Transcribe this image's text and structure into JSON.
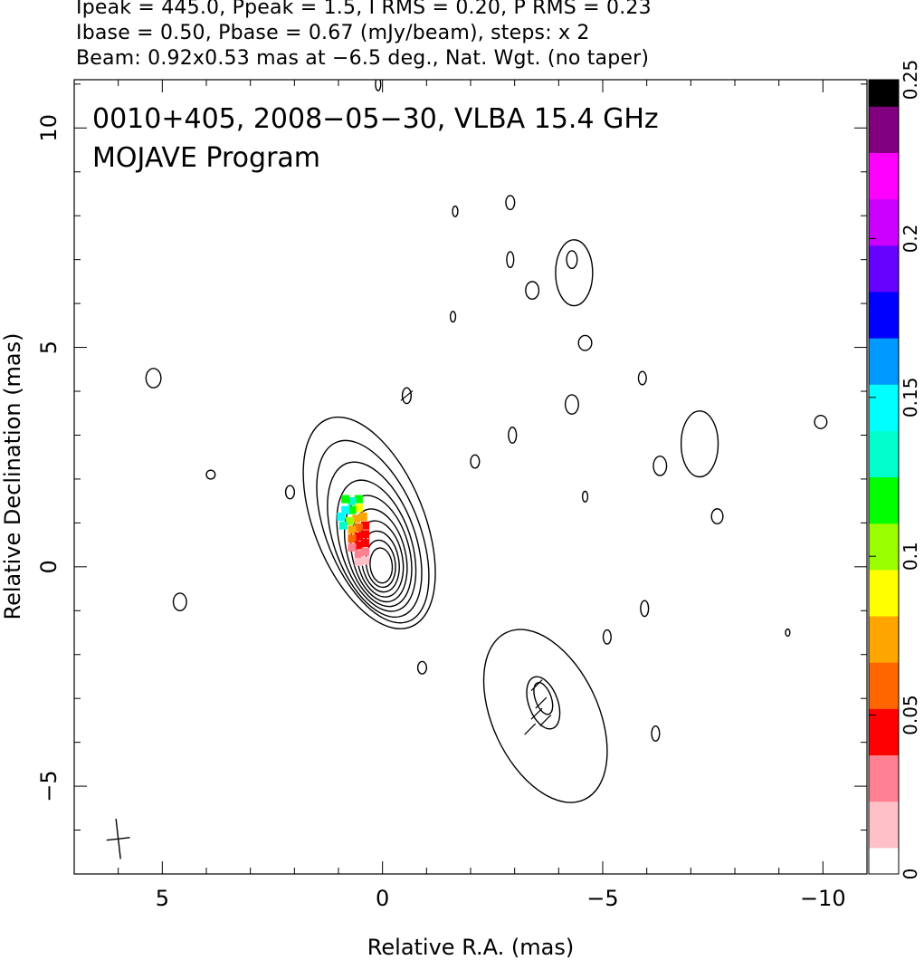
{
  "header": {
    "line1": "Ipeak = 445.0, Ppeak = 1.5, I RMS = 0.20, P RMS = 0.23",
    "line2": "Ibase = 0.50, Pbase = 0.67 (mJy/beam), steps: x 2",
    "line3": "Beam: 0.92x0.53 mas at −6.5 deg., Nat. Wgt. (no taper)"
  },
  "chart_data": {
    "type": "heatmap",
    "title": "0010+405, 2008−05−30, VLBA 15.4 GHz",
    "subtitle": "MOJAVE Program",
    "xlabel": "Relative R.A. (mas)",
    "ylabel": "Relative Declination (mas)",
    "xlim": [
      7.0,
      -11.0
    ],
    "ylim": [
      -7.0,
      11.1
    ],
    "x_ticks": [
      5,
      0,
      -5,
      -10
    ],
    "x_tick_labels": [
      "5",
      "0",
      "−5",
      "−10"
    ],
    "y_ticks": [
      10,
      5,
      0,
      -5
    ],
    "y_tick_labels": [
      "10",
      "5",
      "0",
      "−5"
    ],
    "colorbar": {
      "range": [
        0,
        0.25
      ],
      "ticks": [
        0,
        0.05,
        0.1,
        0.15,
        0.2,
        0.25
      ],
      "tick_labels": [
        "0",
        "0.05",
        "0.1",
        "0.15",
        "0.2",
        "0.25"
      ],
      "colors": [
        "#ffffff",
        "#ffc0c8",
        "#ff8090",
        "#ff0000",
        "#ff6600",
        "#ffa500",
        "#ffff00",
        "#99ff00",
        "#00ff00",
        "#00ffcc",
        "#00ffff",
        "#0099ff",
        "#0000ff",
        "#6600ff",
        "#cc00ff",
        "#ff00ff",
        "#800080",
        "#000000"
      ]
    },
    "beam": {
      "major_mas": 0.92,
      "minor_mas": 0.53,
      "pa_deg": -6.5,
      "center": [
        6.0,
        -6.2
      ]
    },
    "contours": {
      "base_mJy_per_beam": 0.5,
      "factor": 2,
      "core_levels": [
        {
          "cx": 0.3,
          "cy": 1.0,
          "rx": 1.25,
          "ry": 2.55,
          "rot": -22
        },
        {
          "cx": 0.22,
          "cy": 0.8,
          "rx": 1.05,
          "ry": 2.2,
          "rot": -22
        },
        {
          "cx": 0.18,
          "cy": 0.62,
          "rx": 0.92,
          "ry": 1.85,
          "rot": -20
        },
        {
          "cx": 0.14,
          "cy": 0.48,
          "rx": 0.8,
          "ry": 1.55,
          "rot": -18
        },
        {
          "cx": 0.1,
          "cy": 0.36,
          "rx": 0.7,
          "ry": 1.3,
          "rot": -16
        },
        {
          "cx": 0.08,
          "cy": 0.26,
          "rx": 0.6,
          "ry": 1.08,
          "rot": -14
        },
        {
          "cx": 0.06,
          "cy": 0.18,
          "rx": 0.51,
          "ry": 0.88,
          "rot": -12
        },
        {
          "cx": 0.05,
          "cy": 0.12,
          "rx": 0.42,
          "ry": 0.7,
          "rot": -10
        },
        {
          "cx": 0.04,
          "cy": 0.07,
          "rx": 0.33,
          "ry": 0.54,
          "rot": -8
        },
        {
          "cx": 0.03,
          "cy": 0.03,
          "rx": 0.25,
          "ry": 0.4,
          "rot": -6
        }
      ],
      "jet_knot": [
        {
          "cx": -3.7,
          "cy": -3.4,
          "rx": 1.2,
          "ry": 2.1,
          "rot": -25
        },
        {
          "cx": -3.65,
          "cy": -3.1,
          "rx": 0.33,
          "ry": 0.62,
          "rot": -20
        },
        {
          "cx": -3.65,
          "cy": -3.0,
          "rx": 0.18,
          "ry": 0.38,
          "rot": -20
        }
      ],
      "noise_blobs": [
        {
          "cx": 5.2,
          "cy": 4.3,
          "rx": 0.17,
          "ry": 0.22
        },
        {
          "cx": 4.6,
          "cy": -0.8,
          "rx": 0.15,
          "ry": 0.2
        },
        {
          "cx": 2.1,
          "cy": 1.7,
          "rx": 0.1,
          "ry": 0.15
        },
        {
          "cx": 3.9,
          "cy": 2.1,
          "rx": 0.1,
          "ry": 0.1
        },
        {
          "cx": -0.55,
          "cy": 3.9,
          "rx": 0.1,
          "ry": 0.18
        },
        {
          "cx": -1.65,
          "cy": 8.1,
          "rx": 0.06,
          "ry": 0.12
        },
        {
          "cx": -2.9,
          "cy": 8.3,
          "rx": 0.1,
          "ry": 0.16
        },
        {
          "cx": -2.9,
          "cy": 7.0,
          "rx": 0.08,
          "ry": 0.18
        },
        {
          "cx": -3.4,
          "cy": 6.3,
          "rx": 0.15,
          "ry": 0.2
        },
        {
          "cx": -4.3,
          "cy": 7.0,
          "rx": 0.12,
          "ry": 0.2
        },
        {
          "cx": -4.35,
          "cy": 6.7,
          "rx": 0.42,
          "ry": 0.75
        },
        {
          "cx": -1.6,
          "cy": 5.7,
          "rx": 0.06,
          "ry": 0.12
        },
        {
          "cx": -4.6,
          "cy": 5.1,
          "rx": 0.15,
          "ry": 0.17
        },
        {
          "cx": -5.9,
          "cy": 4.3,
          "rx": 0.09,
          "ry": 0.15
        },
        {
          "cx": -4.3,
          "cy": 3.7,
          "rx": 0.15,
          "ry": 0.22
        },
        {
          "cx": -2.95,
          "cy": 3.0,
          "rx": 0.09,
          "ry": 0.18
        },
        {
          "cx": -2.1,
          "cy": 2.4,
          "rx": 0.1,
          "ry": 0.15
        },
        {
          "cx": -6.3,
          "cy": 2.3,
          "rx": 0.15,
          "ry": 0.22
        },
        {
          "cx": -7.2,
          "cy": 2.8,
          "rx": 0.42,
          "ry": 0.75
        },
        {
          "cx": -4.6,
          "cy": 1.6,
          "rx": 0.06,
          "ry": 0.12
        },
        {
          "cx": -7.6,
          "cy": 1.15,
          "rx": 0.13,
          "ry": 0.17
        },
        {
          "cx": -5.95,
          "cy": -0.95,
          "rx": 0.09,
          "ry": 0.18
        },
        {
          "cx": -5.1,
          "cy": -1.6,
          "rx": 0.09,
          "ry": 0.16
        },
        {
          "cx": -0.9,
          "cy": -2.3,
          "rx": 0.1,
          "ry": 0.14
        },
        {
          "cx": -6.2,
          "cy": -3.8,
          "rx": 0.09,
          "ry": 0.17
        },
        {
          "cx": -9.95,
          "cy": 3.3,
          "rx": 0.14,
          "ry": 0.15
        },
        {
          "cx": -9.2,
          "cy": -1.5,
          "rx": 0.05,
          "ry": 0.08
        },
        {
          "cx": 0.1,
          "cy": 11.0,
          "rx": 0.06,
          "ry": 0.15
        }
      ]
    },
    "polarization_pixels": [
      {
        "x": 0.55,
        "y": 1.55,
        "v": 0.12
      },
      {
        "x": 0.7,
        "y": 1.5,
        "v": 0.13
      },
      {
        "x": 0.85,
        "y": 1.55,
        "v": 0.12
      },
      {
        "x": 0.55,
        "y": 1.35,
        "v": 0.09
      },
      {
        "x": 0.7,
        "y": 1.3,
        "v": 0.115
      },
      {
        "x": 0.85,
        "y": 1.3,
        "v": 0.14
      },
      {
        "x": 0.95,
        "y": 1.15,
        "v": 0.15
      },
      {
        "x": 0.45,
        "y": 1.15,
        "v": 0.07
      },
      {
        "x": 0.6,
        "y": 1.1,
        "v": 0.08
      },
      {
        "x": 0.75,
        "y": 1.05,
        "v": 0.11
      },
      {
        "x": 0.9,
        "y": 0.95,
        "v": 0.13
      },
      {
        "x": 0.4,
        "y": 0.95,
        "v": 0.05
      },
      {
        "x": 0.55,
        "y": 0.9,
        "v": 0.055
      },
      {
        "x": 0.7,
        "y": 0.85,
        "v": 0.08
      },
      {
        "x": 0.4,
        "y": 0.75,
        "v": 0.045
      },
      {
        "x": 0.55,
        "y": 0.7,
        "v": 0.04
      },
      {
        "x": 0.7,
        "y": 0.65,
        "v": 0.06
      },
      {
        "x": 0.4,
        "y": 0.55,
        "v": 0.045
      },
      {
        "x": 0.55,
        "y": 0.5,
        "v": 0.04
      },
      {
        "x": 0.7,
        "y": 0.45,
        "v": 0.03
      },
      {
        "x": 0.4,
        "y": 0.35,
        "v": 0.035
      },
      {
        "x": 0.55,
        "y": 0.3,
        "v": 0.025
      },
      {
        "x": 0.4,
        "y": 0.15,
        "v": 0.02
      },
      {
        "x": 0.55,
        "y": 0.12,
        "v": 0.015
      }
    ],
    "evpa_ticks": [
      {
        "x": -3.5,
        "y": -2.7,
        "angle": 45
      },
      {
        "x": -3.6,
        "y": -3.1,
        "angle": 45
      },
      {
        "x": -3.7,
        "y": -3.5,
        "angle": 45
      },
      {
        "x": -3.5,
        "y": -3.35,
        "angle": 45
      },
      {
        "x": -3.35,
        "y": -3.7,
        "angle": 45
      },
      {
        "x": -0.55,
        "y": 3.9,
        "angle": 40
      }
    ]
  }
}
